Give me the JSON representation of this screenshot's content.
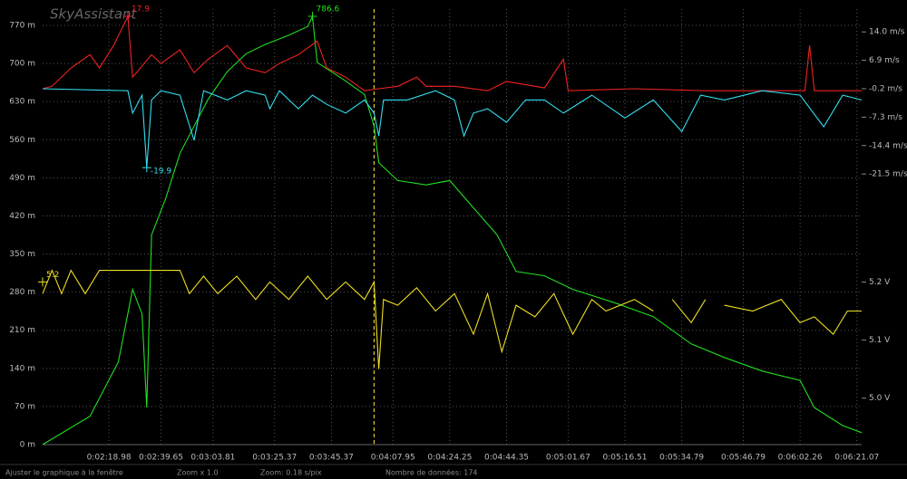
{
  "chart_data": {
    "type": "line",
    "title": "SkyAssistant",
    "xlim": [
      0,
      173
    ],
    "xticks": [
      {
        "value": 14,
        "label": "0:02:18.98"
      },
      {
        "value": 25,
        "label": "0:02:39.65"
      },
      {
        "value": 36,
        "label": "0:03:03.81"
      },
      {
        "value": 49,
        "label": "0:03:25.37"
      },
      {
        "value": 61,
        "label": "0:03:45.37"
      },
      {
        "value": 74,
        "label": "0:04:07.95"
      },
      {
        "value": 86,
        "label": "0:04:24.25"
      },
      {
        "value": 98,
        "label": "0:04:44.35"
      },
      {
        "value": 111,
        "label": "0:05:01.67"
      },
      {
        "value": 123,
        "label": "0:05:16.51"
      },
      {
        "value": 135,
        "label": "0:05:34.79"
      },
      {
        "value": 148,
        "label": "0:05:46.79"
      },
      {
        "value": 160,
        "label": "0:06:02.26"
      },
      {
        "value": 172,
        "label": "0:06:21.07"
      }
    ],
    "ylim": [
      0,
      800
    ],
    "yticks": [
      {
        "value": 0,
        "label": "0 m"
      },
      {
        "value": 70,
        "label": "70 m"
      },
      {
        "value": 140,
        "label": "140 m"
      },
      {
        "value": 210,
        "label": "210 m"
      },
      {
        "value": 280,
        "label": "280 m"
      },
      {
        "value": 350,
        "label": "350 m"
      },
      {
        "value": 420,
        "label": "420 m"
      },
      {
        "value": 490,
        "label": "490 m"
      },
      {
        "value": 560,
        "label": "560 m"
      },
      {
        "value": 630,
        "label": "630 m"
      },
      {
        "value": 700,
        "label": "700 m"
      },
      {
        "value": 770,
        "label": "770 m"
      }
    ],
    "y2lim": [
      -89.1,
      19.7
    ],
    "y2ticks": [
      {
        "value": 14.0,
        "label": "14.0 m/s"
      },
      {
        "value": 6.9,
        "label": "6.9 m/s"
      },
      {
        "value": -0.2,
        "label": "-0.2 m/s"
      },
      {
        "value": -7.3,
        "label": "-7.3 m/s"
      },
      {
        "value": -14.4,
        "label": "-14.4 m/s"
      },
      {
        "value": -21.5,
        "label": "-21.5 m/s"
      }
    ],
    "y3lim": [
      4.92,
      5.67
    ],
    "y3ticks": [
      {
        "value": 5.2,
        "label": "5.2 V"
      },
      {
        "value": 5.1,
        "label": "5.1 V"
      },
      {
        "value": 5.0,
        "label": "5.0 V"
      }
    ],
    "grid": true,
    "cursor_x": 70,
    "cursor_color": "#ffee33",
    "series": [
      {
        "color": "#22dd22",
        "axis": "y",
        "x": [
          0,
          10,
          16,
          19,
          21,
          22,
          23,
          26,
          29,
          35,
          39,
          43,
          47,
          52,
          56,
          57,
          58,
          64,
          68,
          70,
          71,
          75,
          81,
          86,
          91,
          96,
          100,
          106,
          112,
          121,
          129,
          137,
          144,
          152,
          160,
          163,
          169,
          173
        ],
        "values": [
          0,
          52,
          152,
          285,
          240,
          68,
          385,
          452,
          535,
          635,
          685,
          718,
          735,
          752,
          768,
          786.6,
          702,
          668,
          643,
          585,
          518,
          485,
          477,
          485,
          435,
          385,
          318,
          310,
          285,
          260,
          235,
          185,
          160,
          135,
          118,
          68,
          35,
          22
        ]
      },
      {
        "color": "#ee2222",
        "axis": "y2",
        "x": [
          0,
          2,
          6,
          10,
          12,
          15,
          18,
          19,
          23,
          25,
          29,
          32,
          35,
          39,
          43,
          47,
          50,
          54,
          58,
          60,
          64,
          68,
          71,
          75,
          79,
          81,
          87,
          94,
          98,
          106,
          110,
          111,
          125,
          140,
          154,
          161,
          162,
          163,
          173
        ],
        "values": [
          -0.2,
          0.4,
          5.0,
          8.3,
          5.0,
          10.6,
          17.9,
          2.7,
          8.3,
          6.1,
          9.5,
          3.8,
          7.2,
          10.6,
          5.0,
          3.8,
          6.1,
          8.3,
          11.7,
          5.0,
          2.7,
          -0.7,
          -0.2,
          0.4,
          2.7,
          0.4,
          0.4,
          -0.7,
          1.6,
          0.0,
          7.2,
          -0.7,
          -0.2,
          -0.7,
          -0.7,
          -0.7,
          10.6,
          -0.7,
          -0.7
        ]
      },
      {
        "color": "#33ddee",
        "axis": "y2",
        "x": [
          0,
          18,
          19,
          21,
          22,
          23,
          25,
          29,
          32,
          34,
          39,
          43,
          47,
          48,
          50,
          54,
          57,
          60,
          64,
          68,
          70,
          71,
          72,
          77,
          83,
          87,
          89,
          91,
          94,
          98,
          102,
          106,
          110,
          116,
          123,
          129,
          135,
          139,
          144,
          152,
          160,
          165,
          169,
          173
        ],
        "values": [
          -0.2,
          -0.7,
          -6.3,
          -1.8,
          -19.9,
          -3.0,
          -0.7,
          -1.8,
          -13.1,
          -0.7,
          -3.0,
          -0.7,
          -1.8,
          -5.2,
          -0.7,
          -5.2,
          -1.8,
          -4.1,
          -6.3,
          -3.0,
          -6.3,
          -12.0,
          -3.0,
          -3.0,
          -0.7,
          -3.0,
          -12.0,
          -6.3,
          -5.2,
          -8.6,
          -3.0,
          -3.0,
          -6.3,
          -1.8,
          -7.5,
          -3.0,
          -10.9,
          -1.8,
          -3.0,
          -0.7,
          -1.8,
          -9.7,
          -1.8,
          -3.0
        ]
      },
      {
        "color": "#eedd22",
        "axis": "y3",
        "x": [
          0,
          2,
          4,
          6,
          9,
          12,
          16,
          29,
          31,
          34,
          37,
          41,
          45,
          48,
          52,
          56,
          60,
          64,
          68,
          70,
          71,
          72,
          75,
          79,
          83,
          87,
          91,
          94,
          97,
          100,
          104,
          108,
          112,
          116,
          119,
          125,
          129,
          131,
          133,
          137,
          140,
          142,
          144,
          150,
          156,
          160,
          163,
          167,
          170,
          173
        ],
        "values": [
          5.18,
          5.22,
          5.18,
          5.22,
          5.18,
          5.22,
          5.22,
          5.22,
          5.18,
          5.21,
          5.18,
          5.21,
          5.17,
          5.2,
          5.17,
          5.21,
          5.17,
          5.2,
          5.17,
          5.2,
          5.05,
          5.17,
          5.16,
          5.19,
          5.15,
          5.18,
          5.11,
          5.18,
          5.08,
          5.16,
          5.14,
          5.18,
          5.11,
          5.17,
          5.15,
          5.17,
          5.15,
          null,
          5.17,
          5.13,
          5.17,
          null,
          5.16,
          5.15,
          5.17,
          5.13,
          5.14,
          5.11,
          5.15,
          5.15
        ]
      }
    ],
    "annotations": [
      {
        "x": 57,
        "y": 786.6,
        "axis": "y",
        "label": "786.6",
        "color": "#22dd22"
      },
      {
        "x": 18,
        "y": 17.9,
        "axis": "y2",
        "label": "17.9",
        "color": "#ee2222"
      },
      {
        "x": 22,
        "y": -19.9,
        "axis": "y2",
        "label": "-19.9",
        "color": "#33ddee"
      },
      {
        "x": 0,
        "y": 5.2,
        "axis": "y3",
        "label": "5.2",
        "color": "#eedd22"
      }
    ]
  },
  "status_bar": [
    "Ajuster le graphique à la fenêtre",
    "Zoom x 1.0",
    "Zoom: 0.18 s/pix",
    "Nombre de données: 174"
  ]
}
